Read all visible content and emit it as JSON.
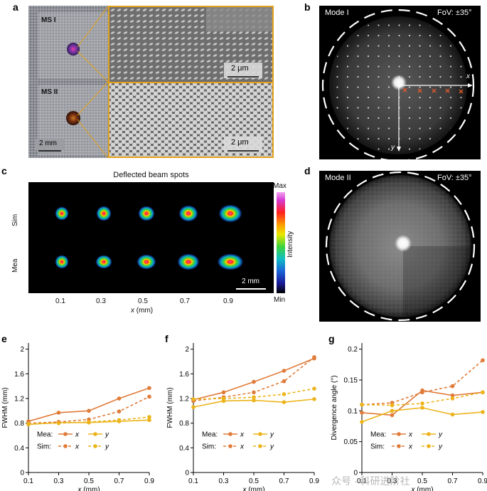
{
  "panels": {
    "a": {
      "label": "a",
      "ms1": "MS I",
      "ms2": "MS II",
      "scale_left": "2 mm",
      "scale_top": "2 μm",
      "scale_bottom": "2 μm"
    },
    "b": {
      "label": "b",
      "mode": "Mode I",
      "fov": "FoV: ±35°",
      "x_axis": "x",
      "y_axis": "y"
    },
    "c": {
      "label": "c",
      "title": "Deflected beam spots",
      "row_sim": "Sim",
      "row_mea": "Mea",
      "scale": "2 mm",
      "colorbar_max": "Max",
      "colorbar_min": "Min",
      "colorbar_label": "Intensity",
      "ticks": [
        "0.1",
        "0.3",
        "0.5",
        "0.7",
        "0.9"
      ],
      "xlabel_var": "x",
      "xlabel_unit": " (mm)"
    },
    "d": {
      "label": "d",
      "mode": "Mode II",
      "fov": "FoV: ±35°"
    },
    "e": {
      "label": "e"
    },
    "f": {
      "label": "f"
    },
    "g": {
      "label": "g"
    }
  },
  "legend": {
    "mea": "Mea:",
    "sim": "Sim:",
    "x": "x",
    "y": "y"
  },
  "watermark": "众号 · 科研进阶社",
  "colors": {
    "x": "#e07b39",
    "y": "#ecb41c",
    "frame": "#e4a21c",
    "marker": "#e05a2b"
  },
  "chart_data": [
    {
      "id": "e",
      "type": "line",
      "ylabel": "FWHM (mm)",
      "xlabel_var": "x",
      "xlabel_unit": " (mm)",
      "xlim": [
        0.1,
        0.9
      ],
      "ylim": [
        0,
        2.1
      ],
      "xticks": [
        "0.1",
        "0.3",
        "0.5",
        "0.7",
        "0.9"
      ],
      "yticks": [
        "0",
        "0.4",
        "0.8",
        "1.2",
        "1.6",
        "2"
      ],
      "x": [
        0.1,
        0.3,
        0.5,
        0.7,
        0.9
      ],
      "series": [
        {
          "name": "Mea x",
          "values": [
            0.83,
            0.97,
            1.0,
            1.2,
            1.37
          ]
        },
        {
          "name": "Mea y",
          "values": [
            0.78,
            0.81,
            0.81,
            0.83,
            0.85
          ]
        },
        {
          "name": "Sim x",
          "values": [
            0.8,
            0.82,
            0.86,
            0.99,
            1.23
          ]
        },
        {
          "name": "Sim y",
          "values": [
            0.79,
            0.8,
            0.82,
            0.85,
            0.9
          ]
        }
      ]
    },
    {
      "id": "f",
      "type": "line",
      "ylabel": "FWHM (mm)",
      "xlabel_var": "x",
      "xlabel_unit": " (mm)",
      "xlim": [
        0.1,
        0.9
      ],
      "ylim": [
        0,
        2.1
      ],
      "xticks": [
        "0.1",
        "0.3",
        "0.5",
        "0.7",
        "0.9"
      ],
      "yticks": [
        "0",
        "0.4",
        "0.8",
        "1.2",
        "1.6",
        "2"
      ],
      "x": [
        0.1,
        0.3,
        0.5,
        0.7,
        0.9
      ],
      "series": [
        {
          "name": "Mea x",
          "values": [
            1.18,
            1.3,
            1.47,
            1.65,
            1.85
          ]
        },
        {
          "name": "Mea y",
          "values": [
            1.06,
            1.16,
            1.17,
            1.14,
            1.19
          ]
        },
        {
          "name": "Sim x",
          "values": [
            1.16,
            1.22,
            1.3,
            1.48,
            1.87
          ]
        },
        {
          "name": "Sim y",
          "values": [
            1.19,
            1.2,
            1.22,
            1.27,
            1.36
          ]
        }
      ]
    },
    {
      "id": "g",
      "type": "line",
      "ylabel": "Divergence angle (°)",
      "xlabel_var": "x",
      "xlabel_unit": " (mm)",
      "xlim": [
        0.1,
        0.9
      ],
      "ylim": [
        0,
        0.21
      ],
      "xticks": [
        "0.1",
        "0.3",
        "0.5",
        "0.7",
        "0.9"
      ],
      "yticks": [
        "0",
        "0.05",
        "0.1",
        "0.15",
        "0.2"
      ],
      "x": [
        0.1,
        0.3,
        0.5,
        0.7,
        0.9
      ],
      "series": [
        {
          "name": "Mea x",
          "values": [
            0.097,
            0.093,
            0.133,
            0.125,
            0.13
          ]
        },
        {
          "name": "Mea y",
          "values": [
            0.082,
            0.1,
            0.105,
            0.094,
            0.098
          ]
        },
        {
          "name": "Sim x",
          "values": [
            0.11,
            0.113,
            0.13,
            0.14,
            0.182
          ]
        },
        {
          "name": "Sim y",
          "values": [
            0.11,
            0.109,
            0.112,
            0.12,
            0.13
          ]
        }
      ]
    }
  ]
}
